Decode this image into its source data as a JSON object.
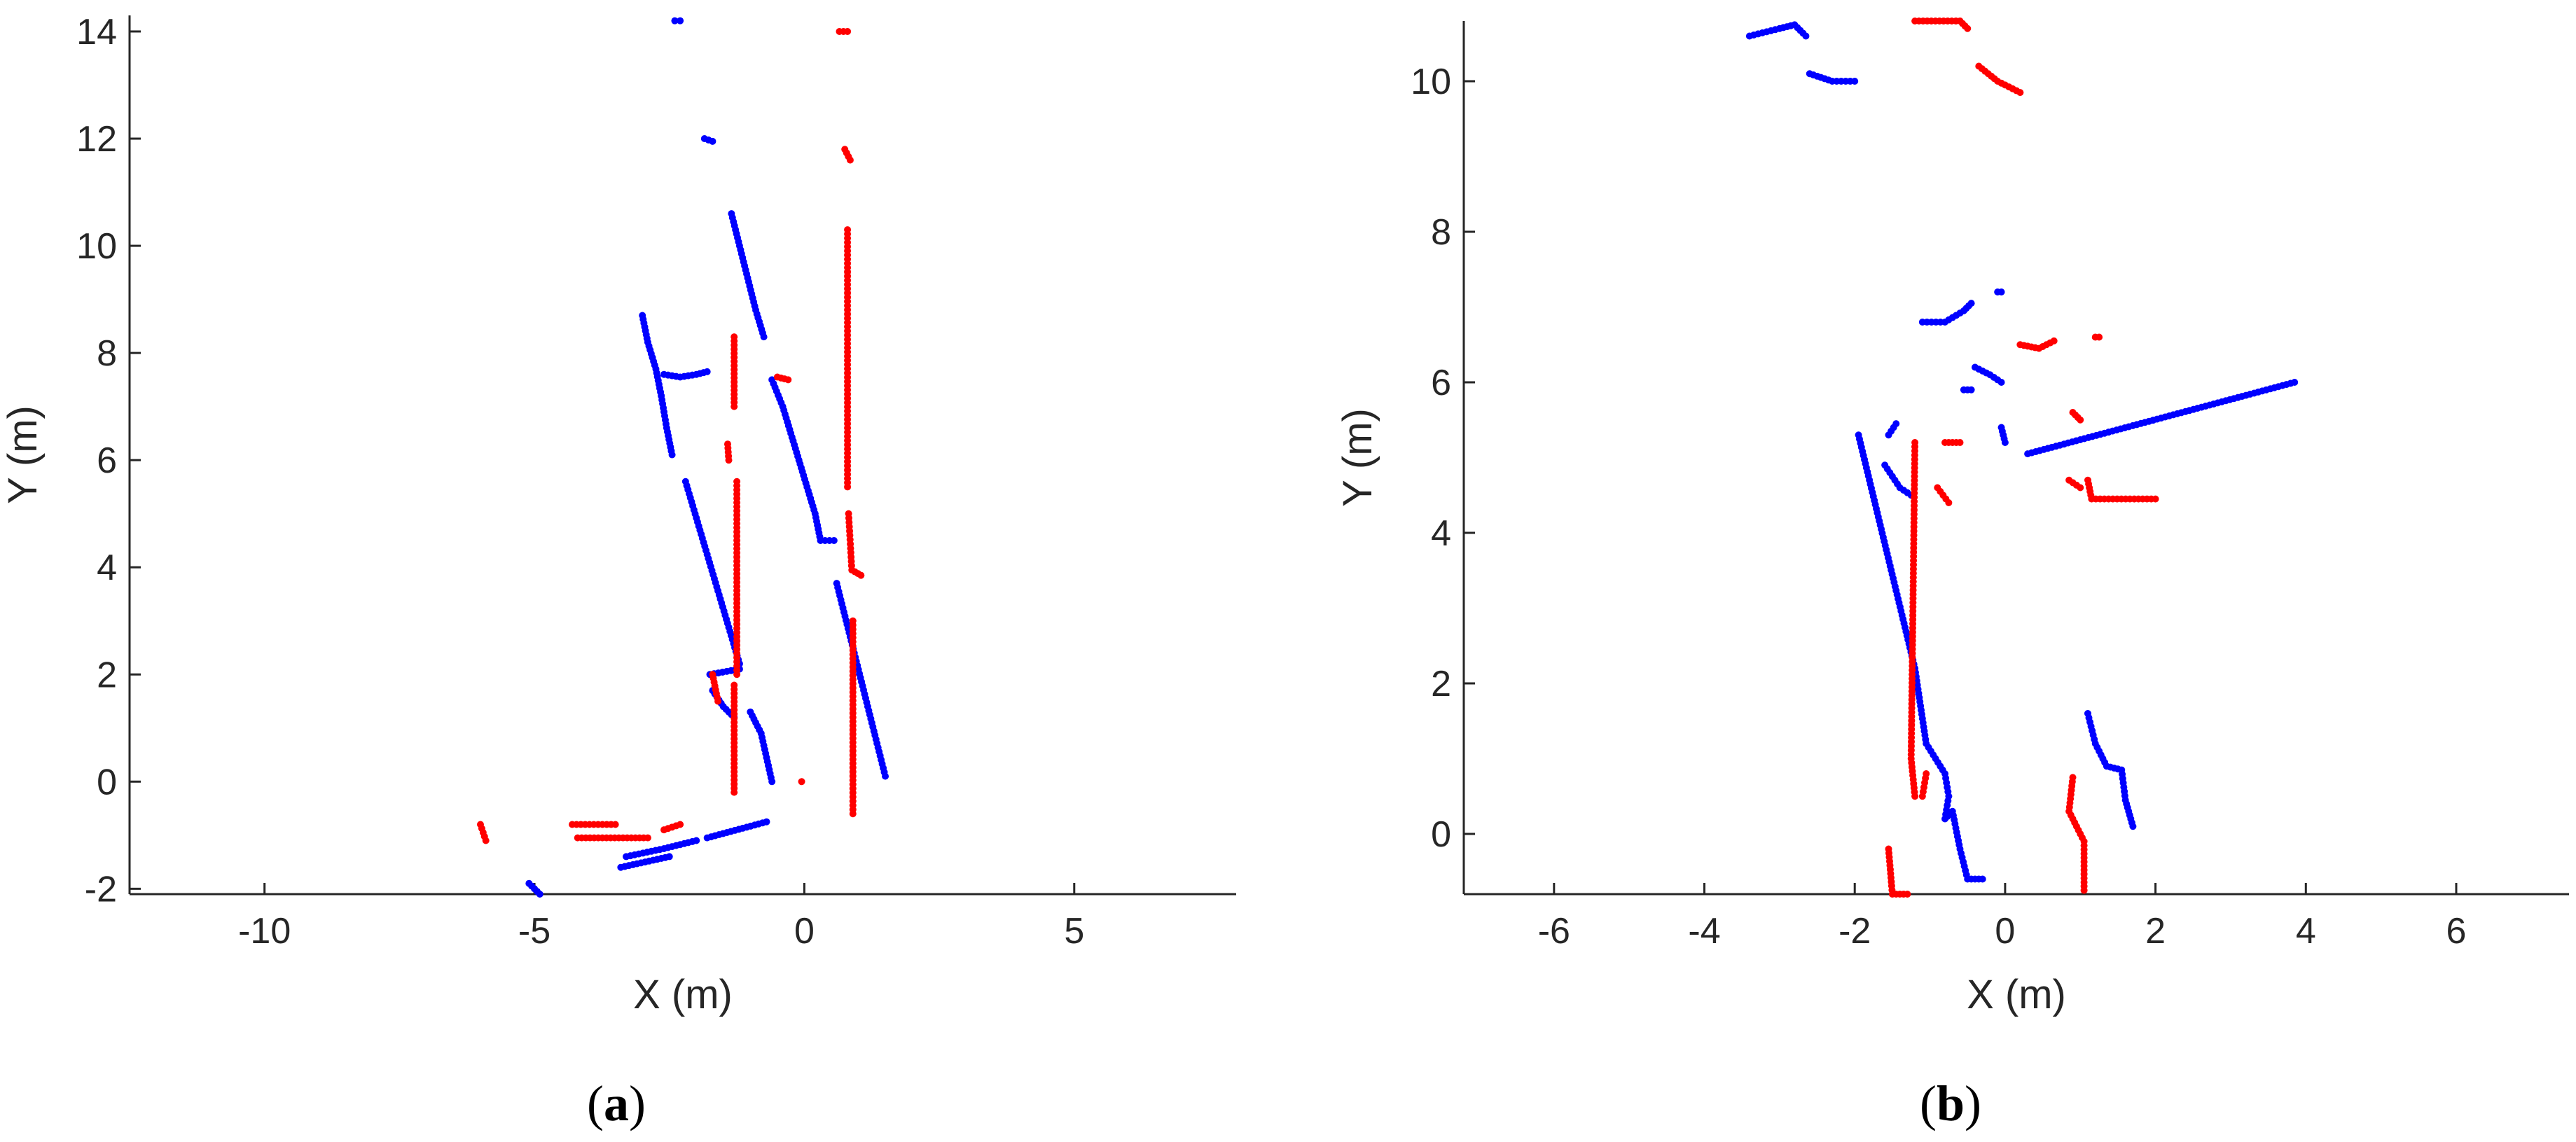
{
  "colors": {
    "series_a": "#ff0000",
    "series_b": "#0000ff",
    "axis": "#262626"
  },
  "chart_data": [
    {
      "type": "scatter",
      "caption_open": "(",
      "caption_letter": "a",
      "caption_close": ")",
      "xlabel": "X (m)",
      "ylabel": "Y (m)",
      "xlim": [
        -12.5,
        8
      ],
      "ylim": [
        -2.1,
        14.3
      ],
      "xticks": [
        -10,
        -5,
        0,
        5
      ],
      "yticks": [
        -2,
        0,
        2,
        4,
        6,
        8,
        10,
        12,
        14
      ],
      "grid": false,
      "series": [
        {
          "name": "blue",
          "color": "#0000ff",
          "segments": [
            [
              [
                -2.4,
                14.2
              ],
              [
                -2.3,
                14.2
              ]
            ],
            [
              [
                -1.85,
                12.0
              ],
              [
                -1.7,
                11.95
              ]
            ],
            [
              [
                -1.35,
                10.6
              ],
              [
                -1.2,
                10.0
              ],
              [
                -1.05,
                9.4
              ],
              [
                -0.9,
                8.8
              ],
              [
                -0.75,
                8.3
              ]
            ],
            [
              [
                -3.0,
                8.7
              ],
              [
                -2.9,
                8.2
              ],
              [
                -2.75,
                7.7
              ],
              [
                -2.65,
                7.2
              ],
              [
                -2.55,
                6.6
              ],
              [
                -2.45,
                6.1
              ]
            ],
            [
              [
                -2.6,
                7.6
              ],
              [
                -2.3,
                7.55
              ],
              [
                -2.0,
                7.6
              ],
              [
                -1.8,
                7.65
              ]
            ],
            [
              [
                -0.6,
                7.5
              ],
              [
                -0.4,
                7.0
              ],
              [
                -0.25,
                6.5
              ],
              [
                -0.1,
                6.0
              ],
              [
                0.05,
                5.5
              ],
              [
                0.2,
                5.0
              ],
              [
                0.3,
                4.5
              ],
              [
                0.55,
                4.5
              ]
            ],
            [
              [
                -2.2,
                5.6
              ],
              [
                -1.2,
                2.2
              ]
            ],
            [
              [
                -1.75,
                2.0
              ],
              [
                -1.2,
                2.1
              ]
            ],
            [
              [
                -1.7,
                1.7
              ],
              [
                -1.5,
                1.4
              ],
              [
                -1.3,
                1.2
              ]
            ],
            [
              [
                -1.0,
                1.3
              ],
              [
                -0.8,
                0.9
              ],
              [
                -0.6,
                0.0
              ]
            ],
            [
              [
                0.6,
                3.7
              ],
              [
                1.5,
                0.1
              ]
            ],
            [
              [
                -3.3,
                -1.4
              ],
              [
                -2.6,
                -1.25
              ],
              [
                -2.0,
                -1.1
              ]
            ],
            [
              [
                -3.4,
                -1.6
              ],
              [
                -2.5,
                -1.4
              ]
            ],
            [
              [
                -1.8,
                -1.05
              ],
              [
                -0.7,
                -0.75
              ]
            ],
            [
              [
                -5.1,
                -1.9
              ],
              [
                -4.9,
                -2.1
              ]
            ]
          ]
        },
        {
          "name": "red",
          "color": "#ff0000",
          "segments": [
            [
              [
                0.65,
                14.0
              ],
              [
                0.8,
                14.0
              ]
            ],
            [
              [
                0.75,
                11.8
              ],
              [
                0.85,
                11.6
              ]
            ],
            [
              [
                0.8,
                10.3
              ],
              [
                0.8,
                5.5
              ]
            ],
            [
              [
                0.82,
                5.0
              ],
              [
                0.88,
                3.95
              ],
              [
                1.05,
                3.85
              ]
            ],
            [
              [
                0.9,
                3.0
              ],
              [
                0.9,
                -0.6
              ]
            ],
            [
              [
                -1.3,
                8.3
              ],
              [
                -1.3,
                7.0
              ]
            ],
            [
              [
                -1.42,
                6.3
              ],
              [
                -1.4,
                6.0
              ]
            ],
            [
              [
                -1.25,
                5.6
              ],
              [
                -1.25,
                2.0
              ]
            ],
            [
              [
                -1.3,
                1.8
              ],
              [
                -1.3,
                -0.2
              ]
            ],
            [
              [
                -1.7,
                2.0
              ],
              [
                -1.6,
                1.5
              ]
            ],
            [
              [
                -0.5,
                7.55
              ],
              [
                -0.3,
                7.5
              ]
            ],
            [
              [
                -4.3,
                -0.8
              ],
              [
                -3.5,
                -0.8
              ]
            ],
            [
              [
                -4.2,
                -1.05
              ],
              [
                -2.9,
                -1.05
              ]
            ],
            [
              [
                -2.6,
                -0.9
              ],
              [
                -2.3,
                -0.8
              ]
            ],
            [
              [
                -6.0,
                -0.8
              ],
              [
                -5.9,
                -1.1
              ]
            ],
            [
              [
                -0.05,
                0.0
              ],
              [
                -0.05,
                0.0
              ]
            ]
          ]
        }
      ]
    },
    {
      "type": "scatter",
      "caption_open": "(",
      "caption_letter": "b",
      "caption_close": ")",
      "xlabel": "X (m)",
      "ylabel": "Y (m)",
      "xlim": [
        -7.2,
        7.5
      ],
      "ylim": [
        -0.8,
        10.8
      ],
      "xticks": [
        -6,
        -4,
        -2,
        0,
        2,
        4,
        6
      ],
      "yticks": [
        0,
        2,
        4,
        6,
        8,
        10
      ],
      "grid": false,
      "series": [
        {
          "name": "blue",
          "color": "#0000ff",
          "segments": [
            [
              [
                -3.4,
                10.6
              ],
              [
                -3.0,
                10.7
              ],
              [
                -2.8,
                10.75
              ],
              [
                -2.65,
                10.6
              ]
            ],
            [
              [
                -2.6,
                10.1
              ],
              [
                -2.3,
                10.0
              ],
              [
                -2.0,
                10.0
              ]
            ],
            [
              [
                -1.1,
                6.8
              ],
              [
                -0.8,
                6.8
              ],
              [
                -0.55,
                6.95
              ],
              [
                -0.45,
                7.05
              ]
            ],
            [
              [
                -0.1,
                7.2
              ],
              [
                -0.05,
                7.2
              ]
            ],
            [
              [
                -0.4,
                6.2
              ],
              [
                -0.2,
                6.1
              ],
              [
                -0.05,
                6.0
              ]
            ],
            [
              [
                -0.55,
                5.9
              ],
              [
                -0.45,
                5.9
              ]
            ],
            [
              [
                -0.05,
                5.4
              ],
              [
                0.0,
                5.2
              ]
            ],
            [
              [
                -1.95,
                5.3
              ],
              [
                -1.2,
                2.2
              ],
              [
                -1.05,
                1.2
              ],
              [
                -0.8,
                0.8
              ],
              [
                -0.75,
                0.5
              ],
              [
                -0.8,
                0.2
              ],
              [
                -0.7,
                0.3
              ],
              [
                -0.6,
                -0.2
              ],
              [
                -0.5,
                -0.6
              ],
              [
                -0.3,
                -0.6
              ]
            ],
            [
              [
                -1.6,
                4.9
              ],
              [
                -1.4,
                4.6
              ],
              [
                -1.25,
                4.5
              ]
            ],
            [
              [
                -1.55,
                5.3
              ],
              [
                -1.45,
                5.45
              ]
            ],
            [
              [
                0.3,
                5.05
              ],
              [
                3.85,
                6.0
              ]
            ],
            [
              [
                1.1,
                1.6
              ],
              [
                1.2,
                1.2
              ],
              [
                1.35,
                0.9
              ],
              [
                1.55,
                0.85
              ],
              [
                1.6,
                0.45
              ],
              [
                1.7,
                0.1
              ]
            ]
          ]
        },
        {
          "name": "red",
          "color": "#ff0000",
          "segments": [
            [
              [
                -1.2,
                10.8
              ],
              [
                -0.6,
                10.8
              ],
              [
                -0.5,
                10.7
              ]
            ],
            [
              [
                -0.35,
                10.2
              ],
              [
                -0.1,
                10.0
              ],
              [
                0.2,
                9.85
              ]
            ],
            [
              [
                0.2,
                6.5
              ],
              [
                0.45,
                6.45
              ],
              [
                0.65,
                6.55
              ]
            ],
            [
              [
                1.2,
                6.6
              ],
              [
                1.25,
                6.6
              ]
            ],
            [
              [
                0.9,
                5.6
              ],
              [
                1.0,
                5.5
              ]
            ],
            [
              [
                0.85,
                4.7
              ],
              [
                1.0,
                4.6
              ]
            ],
            [
              [
                1.1,
                4.7
              ],
              [
                1.15,
                4.45
              ],
              [
                2.0,
                4.45
              ]
            ],
            [
              [
                -0.8,
                5.2
              ],
              [
                -0.6,
                5.2
              ]
            ],
            [
              [
                -0.9,
                4.6
              ],
              [
                -0.75,
                4.4
              ]
            ],
            [
              [
                -1.2,
                5.2
              ],
              [
                -1.25,
                1.0
              ],
              [
                -1.2,
                0.5
              ]
            ],
            [
              [
                -1.05,
                0.8
              ],
              [
                -1.1,
                0.5
              ]
            ],
            [
              [
                -1.55,
                -0.2
              ],
              [
                -1.5,
                -0.8
              ],
              [
                -1.3,
                -0.8
              ]
            ],
            [
              [
                0.9,
                0.75
              ],
              [
                0.85,
                0.3
              ],
              [
                0.95,
                0.1
              ],
              [
                1.05,
                -0.1
              ],
              [
                1.05,
                -0.75
              ]
            ]
          ]
        }
      ]
    }
  ]
}
